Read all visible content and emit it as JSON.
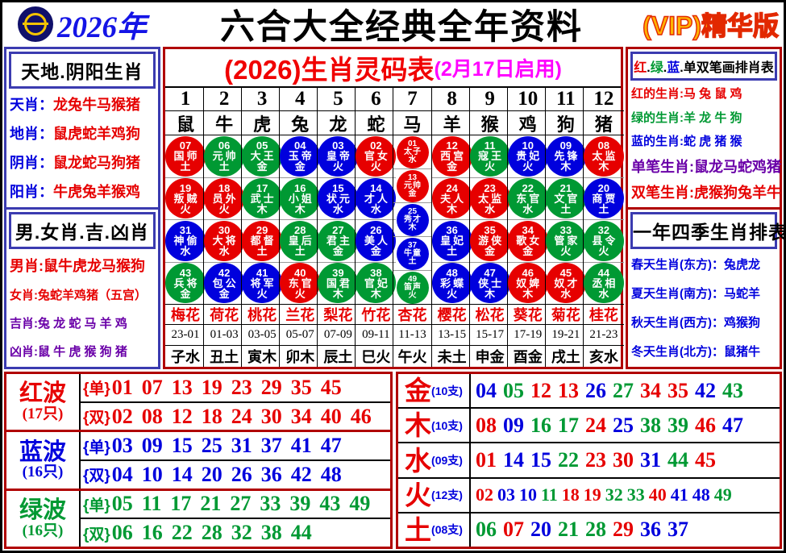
{
  "header": {
    "year": "2026年",
    "title": "六合大全经典全年资料",
    "vip": "(VIP)精华版"
  },
  "left_top": {
    "title": "天地.阴阳生肖",
    "rows": [
      {
        "label": "天肖：",
        "value": "龙兔牛马猴猪",
        "lc": "blue",
        "vc": "red"
      },
      {
        "label": "地肖：",
        "value": "鼠虎蛇羊鸡狗",
        "lc": "blue",
        "vc": "red"
      },
      {
        "label": "阴肖：",
        "value": "鼠龙蛇马狗猪",
        "lc": "blue",
        "vc": "red"
      },
      {
        "label": "阳肖：",
        "value": "牛虎兔羊猴鸡",
        "lc": "blue",
        "vc": "red"
      }
    ]
  },
  "left_bottom": {
    "title": "男.女肖.吉.凶肖",
    "rows": [
      {
        "label": "男肖:",
        "value": "鼠牛虎龙马猴狗",
        "lc": "red",
        "vc": "red"
      },
      {
        "label": "女肖:",
        "value": "兔蛇羊鸡猪（五宫）",
        "lc": "red",
        "vc": "red"
      },
      {
        "label": "吉肖:",
        "value": "兔 龙 蛇 马 羊 鸡",
        "lc": "purple",
        "vc": "purple"
      },
      {
        "label": "凶肖:",
        "value": "鼠 牛 虎 猴 狗 猪",
        "lc": "purple",
        "vc": "purple"
      }
    ]
  },
  "center": {
    "title_main": "(2026)生肖灵码表",
    "title_sub": "(2月17日启用)",
    "col_numbers": [
      "1",
      "2",
      "3",
      "4",
      "5",
      "6",
      "7",
      "8",
      "9",
      "10",
      "11",
      "12"
    ],
    "zodiac": [
      "鼠",
      "牛",
      "虎",
      "兔",
      "龙",
      "蛇",
      "马",
      "羊",
      "猴",
      "鸡",
      "狗",
      "猪"
    ],
    "columns": [
      {
        "balls": [
          [
            "07",
            "国师",
            "土",
            "r"
          ],
          [
            "19",
            "叛贼",
            "火",
            "r"
          ],
          [
            "31",
            "神偷",
            "水",
            "b"
          ],
          [
            "43",
            "兵将",
            "金",
            "g"
          ]
        ]
      },
      {
        "balls": [
          [
            "06",
            "元帅",
            "土",
            "g"
          ],
          [
            "18",
            "员外",
            "火",
            "r"
          ],
          [
            "30",
            "大将",
            "水",
            "r"
          ],
          [
            "42",
            "包公",
            "金",
            "b"
          ]
        ]
      },
      {
        "balls": [
          [
            "05",
            "大王",
            "金",
            "g"
          ],
          [
            "17",
            "武士",
            "木",
            "g"
          ],
          [
            "29",
            "都督",
            "土",
            "r"
          ],
          [
            "41",
            "将军",
            "火",
            "b"
          ]
        ]
      },
      {
        "balls": [
          [
            "04",
            "玉帝",
            "金",
            "b"
          ],
          [
            "16",
            "小姐",
            "木",
            "g"
          ],
          [
            "28",
            "皇后",
            "土",
            "g"
          ],
          [
            "40",
            "东官",
            "火",
            "r"
          ]
        ]
      },
      {
        "balls": [
          [
            "03",
            "皇帝",
            "火",
            "b"
          ],
          [
            "15",
            "状元",
            "水",
            "b"
          ],
          [
            "27",
            "君主",
            "金",
            "g"
          ],
          [
            "39",
            "国君",
            "木",
            "g"
          ]
        ]
      },
      {
        "balls": [
          [
            "02",
            "官女",
            "火",
            "r"
          ],
          [
            "14",
            "才人",
            "水",
            "b"
          ],
          [
            "26",
            "美人",
            "金",
            "b"
          ],
          [
            "38",
            "官妃",
            "木",
            "g"
          ]
        ]
      },
      {
        "small": true,
        "balls": [
          [
            "01",
            "太子",
            "水",
            "r"
          ],
          [
            "13",
            "元帅",
            "金",
            "r"
          ],
          [
            "25",
            "秀才",
            "木",
            "b"
          ],
          [
            "37",
            "牛童",
            "土",
            "b"
          ],
          [
            "49",
            "笛声",
            "火",
            "g"
          ]
        ]
      },
      {
        "balls": [
          [
            "12",
            "西宫",
            "金",
            "r"
          ],
          [
            "24",
            "夫人",
            "木",
            "r"
          ],
          [
            "36",
            "皇妃",
            "土",
            "b"
          ],
          [
            "48",
            "彩蝶",
            "火",
            "b"
          ]
        ]
      },
      {
        "balls": [
          [
            "11",
            "寇王",
            "火",
            "g"
          ],
          [
            "23",
            "太监",
            "水",
            "r"
          ],
          [
            "35",
            "游侠",
            "金",
            "r"
          ],
          [
            "47",
            "侠士",
            "木",
            "b"
          ]
        ]
      },
      {
        "balls": [
          [
            "10",
            "贵妃",
            "火",
            "b"
          ],
          [
            "22",
            "东官",
            "水",
            "g"
          ],
          [
            "34",
            "歌女",
            "金",
            "r"
          ],
          [
            "46",
            "奴婢",
            "木",
            "r"
          ]
        ]
      },
      {
        "balls": [
          [
            "09",
            "先锋",
            "木",
            "b"
          ],
          [
            "21",
            "文官",
            "土",
            "g"
          ],
          [
            "33",
            "管家",
            "火",
            "g"
          ],
          [
            "45",
            "奴才",
            "水",
            "r"
          ]
        ]
      },
      {
        "balls": [
          [
            "08",
            "太监",
            "木",
            "r"
          ],
          [
            "20",
            "商贾",
            "土",
            "b"
          ],
          [
            "32",
            "县令",
            "火",
            "g"
          ],
          [
            "44",
            "丞相",
            "水",
            "g"
          ]
        ]
      }
    ],
    "flowers": [
      "梅花",
      "荷花",
      "桃花",
      "兰花",
      "梨花",
      "竹花",
      "杏花",
      "樱花",
      "松花",
      "葵花",
      "菊花",
      "桂花"
    ],
    "ranges": [
      "23-01",
      "01-03",
      "03-05",
      "05-07",
      "07-09",
      "09-11",
      "11-13",
      "13-15",
      "15-17",
      "17-19",
      "19-21",
      "21-23"
    ],
    "branches": [
      "子水",
      "丑土",
      "寅木",
      "卯木",
      "辰土",
      "巳火",
      "午火",
      "未土",
      "申金",
      "酉金",
      "戌土",
      "亥水"
    ]
  },
  "right_top": {
    "title_segments": [
      {
        "t": "红",
        "c": "red"
      },
      {
        "t": ".",
        "c": "black"
      },
      {
        "t": "绿",
        "c": "green"
      },
      {
        "t": ".",
        "c": "black"
      },
      {
        "t": "蓝",
        "c": "blue"
      },
      {
        "t": ".",
        "c": "black"
      },
      {
        "t": "单双笔画排肖表",
        "c": "black"
      }
    ],
    "rows": [
      {
        "label": "红的生肖:",
        "value": "马 兔 鼠 鸡",
        "c": "red"
      },
      {
        "label": "绿的生肖:",
        "value": "羊 龙 牛 狗",
        "c": "green"
      },
      {
        "label": "蓝的生肖:",
        "value": "蛇 虎 猪 猴",
        "c": "blue"
      },
      {
        "label": "单笔生肖:",
        "value": "鼠龙马蛇鸡猪",
        "c": "purple"
      },
      {
        "label": "双笔生肖:",
        "value": "虎猴狗兔羊牛",
        "c": "red"
      }
    ]
  },
  "right_bottom": {
    "title": "一年四季生肖排表",
    "rows": [
      {
        "label": "春天生肖(东方)：",
        "value": "兔虎龙"
      },
      {
        "label": "夏天生肖(南方)：",
        "value": "马蛇羊"
      },
      {
        "label": "秋天生肖(西方)：",
        "value": "鸡猴狗"
      },
      {
        "label": "冬天生肖(北方)：",
        "value": "鼠猪牛"
      }
    ]
  },
  "waves": [
    {
      "name": "红波",
      "count": "(17只)",
      "c": "red",
      "rows": [
        {
          "tag": "{单}",
          "nums": "01 07 13 19 23 29 35 45"
        },
        {
          "tag": "{双}",
          "nums": "02 08 12 18 24 30 34 40 46"
        }
      ]
    },
    {
      "name": "蓝波",
      "count": "(16只)",
      "c": "blue",
      "rows": [
        {
          "tag": "{单}",
          "nums": "03 09 15 25 31 37 41 47"
        },
        {
          "tag": "{双}",
          "nums": "04 10 14 20 26 36 42 48"
        }
      ]
    },
    {
      "name": "绿波",
      "count": "(16只)",
      "c": "green",
      "rows": [
        {
          "tag": "{单}",
          "nums": "05 11 17 21 27 33 39 43 49"
        },
        {
          "tag": "{双}",
          "nums": "06 16 22 28 32 38 44"
        }
      ]
    }
  ],
  "elements": [
    {
      "name": "金",
      "count": "(10支)",
      "nums": [
        "04",
        "05",
        "12",
        "13",
        "26",
        "27",
        "34",
        "35",
        "42",
        "43"
      ]
    },
    {
      "name": "木",
      "count": "(10支)",
      "nums": [
        "08",
        "09",
        "16",
        "17",
        "24",
        "25",
        "38",
        "39",
        "46",
        "47"
      ]
    },
    {
      "name": "水",
      "count": "(09支)",
      "nums": [
        "01",
        "14",
        "15",
        "22",
        "23",
        "30",
        "31",
        "44",
        "45"
      ]
    },
    {
      "name": "火",
      "count": "(12支)",
      "nums": [
        "02",
        "03",
        "10",
        "11",
        "18",
        "19",
        "32",
        "33",
        "40",
        "41",
        "48",
        "49"
      ]
    },
    {
      "name": "土",
      "count": "(08支)",
      "nums": [
        "06",
        "07",
        "20",
        "21",
        "28",
        "29",
        "36",
        "37"
      ]
    }
  ],
  "wave_number_sets": {
    "red": [
      1,
      2,
      7,
      8,
      12,
      13,
      18,
      19,
      23,
      24,
      29,
      30,
      34,
      35,
      40,
      45,
      46
    ],
    "blue": [
      3,
      4,
      9,
      10,
      14,
      15,
      20,
      25,
      26,
      31,
      36,
      37,
      41,
      42,
      47,
      48
    ],
    "green": [
      5,
      6,
      11,
      16,
      17,
      21,
      22,
      27,
      28,
      32,
      33,
      38,
      39,
      43,
      44,
      49
    ]
  },
  "palette": {
    "red": "#e60000",
    "green": "#009933",
    "blue": "#0000dd",
    "purple": "#6a00a8",
    "magenta": "#ff00ff",
    "navy": "#3b3bb0",
    "border_red": "#b00000",
    "gold": "#f5c400"
  }
}
